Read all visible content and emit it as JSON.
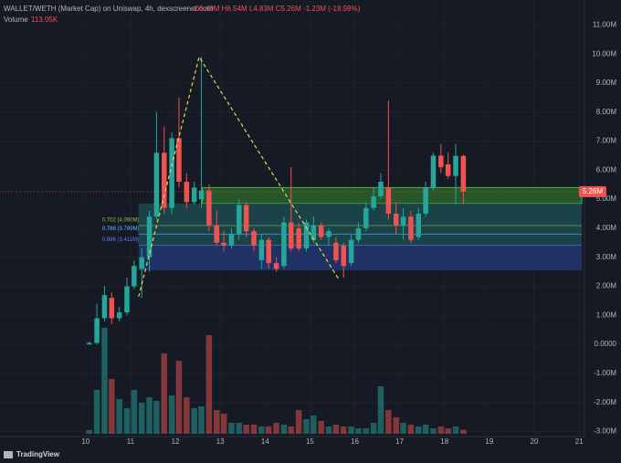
{
  "chart_data": {
    "type": "candlestick",
    "title": "WALLET/WETH (Market Cap) on Uniswap, 4h, dexscreener.com",
    "ohlc_legend": "O6.49M H6.54M L4.83M C5.26M -1.23M (-18.98%)",
    "volume_title": "Volume",
    "volume_legend": "113.05K",
    "last_price_label": "5.26M",
    "watermark": "TradingView",
    "up_color": "#26a69a",
    "down_color": "#ef5350",
    "grid": true,
    "x": [
      10.08,
      10.25,
      10.42,
      10.58,
      10.75,
      10.92,
      11.08,
      11.25,
      11.42,
      11.58,
      11.75,
      11.92,
      12.08,
      12.25,
      12.42,
      12.58,
      12.75,
      12.92,
      13.08,
      13.25,
      13.42,
      13.58,
      13.75,
      13.92,
      14.08,
      14.25,
      14.42,
      14.58,
      14.75,
      14.92,
      15.08,
      15.25,
      15.42,
      15.58,
      15.75,
      15.92,
      16.08,
      16.25,
      16.42,
      16.58,
      16.75,
      16.92,
      17.08,
      17.25,
      17.42,
      17.58,
      17.75,
      17.92,
      18.08,
      18.25,
      18.42
    ],
    "open": [
      0,
      0.05,
      0.9,
      1.6,
      0.9,
      1.1,
      2.0,
      2.6,
      3.0,
      4.4,
      6.6,
      4.7,
      7.1,
      5.6,
      4.9,
      5.0,
      5.3,
      4.1,
      3.5,
      3.4,
      3.8,
      4.8,
      3.9,
      2.9,
      3.6,
      2.8,
      2.7,
      4.2,
      4.0,
      3.3,
      3.6,
      4.1,
      3.7,
      3.5,
      3.4,
      2.8,
      3.6,
      4.0,
      4.7,
      5.1,
      5.4,
      4.5,
      4.1,
      4.4,
      3.7,
      4.5,
      5.4,
      6.5,
      6.2,
      5.8,
      6.49
    ],
    "high": [
      0.1,
      1.4,
      2.0,
      1.8,
      1.3,
      2.3,
      2.9,
      3.3,
      4.6,
      8.0,
      7.5,
      7.3,
      8.5,
      5.9,
      5.6,
      9.9,
      5.5,
      4.6,
      3.9,
      4.0,
      5.0,
      4.9,
      4.0,
      3.8,
      3.7,
      3.0,
      4.4,
      6.1,
      4.2,
      4.3,
      4.4,
      4.2,
      4.0,
      3.7,
      3.5,
      3.8,
      4.2,
      4.9,
      5.4,
      5.9,
      8.4,
      4.9,
      4.7,
      4.6,
      4.7,
      5.6,
      6.6,
      6.9,
      6.6,
      6.9,
      6.54
    ],
    "low": [
      0,
      0,
      0.8,
      0.7,
      0.8,
      1.0,
      1.9,
      1.6,
      2.5,
      4.3,
      4.5,
      4.5,
      5.4,
      4.7,
      4.8,
      4.7,
      3.9,
      3.4,
      3.2,
      3.3,
      3.6,
      3.7,
      3.2,
      2.6,
      2.6,
      2.5,
      2.6,
      3.2,
      3.2,
      3.2,
      3.5,
      3.6,
      3.4,
      2.8,
      2.3,
      2.7,
      3.5,
      3.9,
      4.6,
      5.0,
      4.3,
      3.8,
      3.6,
      3.5,
      3.6,
      4.4,
      5.3,
      5.9,
      5.7,
      4.8,
      4.83
    ],
    "close": [
      0.05,
      0.9,
      1.7,
      0.9,
      1.1,
      2.0,
      2.7,
      3.0,
      4.4,
      6.6,
      4.7,
      7.1,
      5.6,
      4.9,
      5.4,
      5.3,
      4.1,
      3.5,
      3.4,
      3.8,
      4.8,
      3.9,
      3.4,
      3.6,
      2.8,
      2.6,
      4.2,
      3.3,
      3.3,
      4.2,
      4.1,
      3.7,
      3.9,
      2.9,
      2.7,
      3.6,
      4.0,
      4.7,
      5.1,
      5.6,
      4.5,
      4.1,
      4.4,
      3.6,
      4.5,
      5.4,
      6.5,
      6.1,
      5.8,
      6.49,
      5.26
    ],
    "volume": [
      100,
      1200,
      2900,
      1500,
      950,
      700,
      1200,
      850,
      1000,
      900,
      2200,
      1050,
      2000,
      1000,
      700,
      750,
      2700,
      650,
      550,
      300,
      300,
      250,
      250,
      200,
      200,
      300,
      250,
      200,
      650,
      400,
      500,
      350,
      200,
      250,
      200,
      200,
      150,
      150,
      300,
      1300,
      650,
      450,
      300,
      250,
      200,
      250,
      150,
      200,
      150,
      200,
      113.05
    ],
    "volume_lim": [
      0,
      3000
    ],
    "ylim": [
      -3.11,
      11.86
    ],
    "yticks": [
      {
        "value": 11,
        "label": "11.00M"
      },
      {
        "value": 10,
        "label": "10.00M"
      },
      {
        "value": 9,
        "label": "9.00M"
      },
      {
        "value": 8,
        "label": "8.00M"
      },
      {
        "value": 7,
        "label": "7.00M"
      },
      {
        "value": 6,
        "label": "6.00M"
      },
      {
        "value": 5,
        "label": "5.00M"
      },
      {
        "value": 4,
        "label": "4.00M"
      },
      {
        "value": 3,
        "label": "3.00M"
      },
      {
        "value": 2,
        "label": "2.00M"
      },
      {
        "value": 1,
        "label": "1.00M"
      },
      {
        "value": 0,
        "label": "0.0000"
      },
      {
        "value": -1,
        "label": "-1.00M"
      },
      {
        "value": -2,
        "label": "-2.00M"
      },
      {
        "value": -3,
        "label": "-3.00M"
      }
    ],
    "xlim": [
      8.09,
      21.12
    ],
    "xticks": [
      10,
      11,
      12,
      13,
      14,
      15,
      16,
      17,
      18,
      19,
      20,
      21
    ],
    "zones": [
      {
        "from": 5.4,
        "to": 4.85,
        "start": 12.6,
        "color": "#2e6b2a"
      },
      {
        "from": 4.85,
        "to": 3.4,
        "start": 11.18,
        "color": "#1d4f55"
      },
      {
        "from": 3.4,
        "to": 2.55,
        "start": 11.18,
        "color": "#243a7a"
      }
    ],
    "fib_levels": [
      {
        "value": 4.09,
        "label": "0.702 (4.090M)",
        "color": "#8bc34a"
      },
      {
        "value": 3.799,
        "label": "0.786 (3.799M)",
        "color": "#4fc3f7"
      },
      {
        "value": 3.411,
        "label": "0.886 (3.411M)",
        "color": "#5c7cfa"
      }
    ],
    "pattern": {
      "x": [
        11.18,
        12.53,
        15.66
      ],
      "values": [
        1.64,
        9.9,
        2.2
      ],
      "color": "#e8d44d"
    }
  }
}
